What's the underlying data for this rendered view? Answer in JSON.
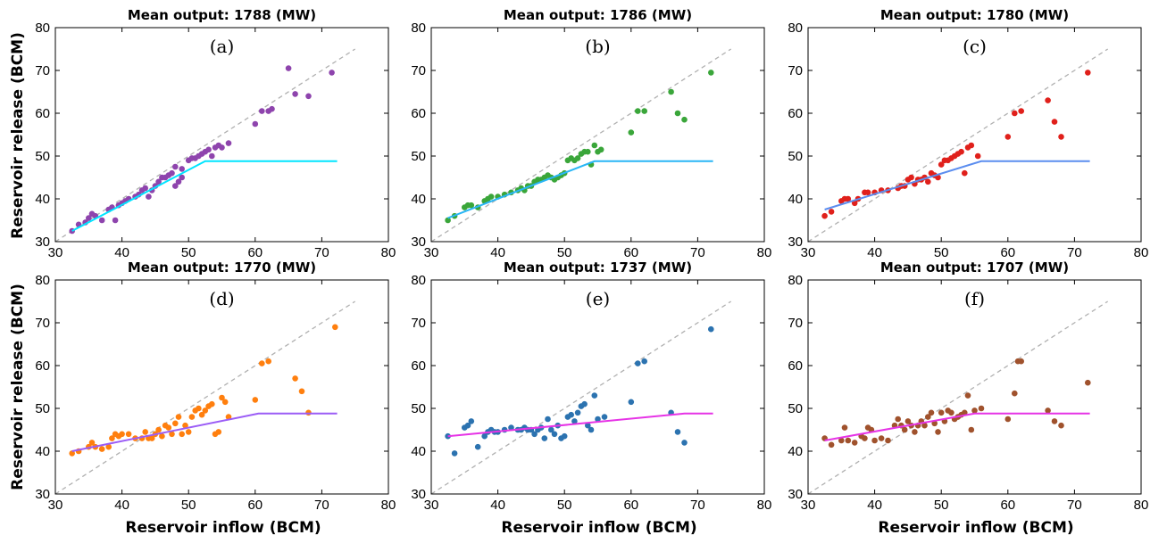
{
  "figure": {
    "ylabel": "Reservoir release (BCM)",
    "xlabel": "Reservoir inflow (BCM)"
  },
  "chart_data": [
    {
      "type": "scatter",
      "title": "Mean output: 1788 (MW)",
      "panel_label": "(a)",
      "xlim": [
        30,
        80
      ],
      "ylim": [
        30,
        80
      ],
      "xticks": [
        "30",
        "40",
        "50",
        "60",
        "70",
        "80"
      ],
      "yticks": [
        "30",
        "40",
        "50",
        "60",
        "70",
        "80"
      ],
      "point_color": "#8e44ad",
      "line_color": "#00e5ff",
      "identity_line": [
        [
          30,
          30
        ],
        [
          75,
          75
        ]
      ],
      "policy_line": [
        [
          32.5,
          32.5
        ],
        [
          52.5,
          48.8
        ],
        [
          72.3,
          48.8
        ]
      ],
      "points": [
        [
          32.5,
          32.5
        ],
        [
          33.5,
          34
        ],
        [
          34.5,
          34.5
        ],
        [
          35,
          35.5
        ],
        [
          35.5,
          36.5
        ],
        [
          36,
          36
        ],
        [
          37,
          35
        ],
        [
          38,
          37.5
        ],
        [
          38.5,
          38
        ],
        [
          39,
          35
        ],
        [
          39.5,
          38.5
        ],
        [
          40,
          39
        ],
        [
          40.5,
          39.5
        ],
        [
          41,
          40
        ],
        [
          42,
          40.5
        ],
        [
          42.5,
          41
        ],
        [
          43,
          42
        ],
        [
          43.5,
          42.5
        ],
        [
          44,
          40.5
        ],
        [
          44.5,
          42
        ],
        [
          45,
          43
        ],
        [
          45.5,
          44
        ],
        [
          46,
          45
        ],
        [
          46.5,
          45
        ],
        [
          47,
          45.5
        ],
        [
          47.5,
          46
        ],
        [
          48,
          43
        ],
        [
          48,
          47.5
        ],
        [
          48.5,
          44
        ],
        [
          49,
          45
        ],
        [
          49,
          47
        ],
        [
          50,
          49
        ],
        [
          50.5,
          49.5
        ],
        [
          51,
          49.5
        ],
        [
          51.5,
          50
        ],
        [
          52,
          50.5
        ],
        [
          52.5,
          51
        ],
        [
          53,
          51.5
        ],
        [
          53.5,
          50
        ],
        [
          54,
          52
        ],
        [
          54.5,
          52.5
        ],
        [
          55,
          52
        ],
        [
          56,
          53
        ],
        [
          60,
          57.5
        ],
        [
          61,
          60.5
        ],
        [
          62,
          60.5
        ],
        [
          62.5,
          61
        ],
        [
          65,
          70.5
        ],
        [
          66,
          64.5
        ],
        [
          68,
          64
        ],
        [
          71.5,
          69.5
        ]
      ]
    },
    {
      "type": "scatter",
      "title": "Mean output: 1786 (MW)",
      "panel_label": "(b)",
      "xlim": [
        30,
        80
      ],
      "ylim": [
        30,
        80
      ],
      "xticks": [
        "30",
        "40",
        "50",
        "60",
        "70",
        "80"
      ],
      "yticks": [
        "30",
        "40",
        "50",
        "60",
        "70",
        "80"
      ],
      "point_color": "#3aa63a",
      "line_color": "#29b6f6",
      "identity_line": [
        [
          30,
          30
        ],
        [
          75,
          75
        ]
      ],
      "policy_line": [
        [
          32.5,
          35.5
        ],
        [
          54.5,
          48.8
        ],
        [
          72.3,
          48.8
        ]
      ],
      "points": [
        [
          32.5,
          35
        ],
        [
          33.5,
          36
        ],
        [
          35,
          38
        ],
        [
          35.5,
          38.5
        ],
        [
          36,
          38.5
        ],
        [
          37,
          38
        ],
        [
          38,
          39.5
        ],
        [
          38.5,
          40
        ],
        [
          39,
          40.5
        ],
        [
          40,
          40.5
        ],
        [
          41,
          41
        ],
        [
          42,
          41.5
        ],
        [
          43,
          42
        ],
        [
          43.5,
          42.5
        ],
        [
          44,
          42
        ],
        [
          44.5,
          43
        ],
        [
          45,
          43
        ],
        [
          45.5,
          44
        ],
        [
          46,
          44.5
        ],
        [
          46.5,
          44.5
        ],
        [
          47,
          45
        ],
        [
          47.5,
          45.5
        ],
        [
          48,
          45
        ],
        [
          48.5,
          44.5
        ],
        [
          49,
          45
        ],
        [
          49.5,
          45.5
        ],
        [
          50,
          46
        ],
        [
          50.5,
          49
        ],
        [
          51,
          49.5
        ],
        [
          51.5,
          49
        ],
        [
          52,
          49.5
        ],
        [
          52.5,
          50.5
        ],
        [
          53,
          51
        ],
        [
          53.5,
          51
        ],
        [
          54,
          48
        ],
        [
          54.5,
          52.5
        ],
        [
          55,
          51
        ],
        [
          55.5,
          51.5
        ],
        [
          60,
          55.5
        ],
        [
          61,
          60.5
        ],
        [
          62,
          60.5
        ],
        [
          66,
          65
        ],
        [
          67,
          60
        ],
        [
          68,
          58.5
        ],
        [
          72,
          69.5
        ]
      ]
    },
    {
      "type": "scatter",
      "title": "Mean output: 1780 (MW)",
      "panel_label": "(c)",
      "xlim": [
        30,
        80
      ],
      "ylim": [
        30,
        80
      ],
      "xticks": [
        "30",
        "40",
        "50",
        "60",
        "70",
        "80"
      ],
      "yticks": [
        "30",
        "40",
        "50",
        "60",
        "70",
        "80"
      ],
      "point_color": "#e0201b",
      "line_color": "#5b8def",
      "identity_line": [
        [
          30,
          30
        ],
        [
          75,
          75
        ]
      ],
      "policy_line": [
        [
          32.5,
          37.5
        ],
        [
          56,
          48.8
        ],
        [
          72.3,
          48.8
        ]
      ],
      "points": [
        [
          32.5,
          36
        ],
        [
          33.5,
          37
        ],
        [
          35,
          39.5
        ],
        [
          35.5,
          40
        ],
        [
          36,
          40
        ],
        [
          37,
          39
        ],
        [
          37.5,
          40
        ],
        [
          38.5,
          41.5
        ],
        [
          39,
          41.5
        ],
        [
          40,
          41.5
        ],
        [
          41,
          42
        ],
        [
          42,
          42
        ],
        [
          43.5,
          42.5
        ],
        [
          44,
          43
        ],
        [
          44.5,
          43
        ],
        [
          45,
          44.5
        ],
        [
          45.5,
          45
        ],
        [
          46,
          43.5
        ],
        [
          46.5,
          44.5
        ],
        [
          47,
          44.5
        ],
        [
          47.5,
          45
        ],
        [
          48,
          44
        ],
        [
          48.5,
          46
        ],
        [
          49,
          45.5
        ],
        [
          49.5,
          45
        ],
        [
          50,
          48
        ],
        [
          50.5,
          49
        ],
        [
          51,
          49
        ],
        [
          51.5,
          49.5
        ],
        [
          52,
          50
        ],
        [
          52.5,
          50.5
        ],
        [
          53,
          51
        ],
        [
          53.5,
          46
        ],
        [
          54,
          52
        ],
        [
          54.5,
          52.5
        ],
        [
          55.5,
          50
        ],
        [
          60,
          54.5
        ],
        [
          61,
          60
        ],
        [
          62,
          60.5
        ],
        [
          66,
          63
        ],
        [
          67,
          58
        ],
        [
          68,
          54.5
        ],
        [
          72,
          69.5
        ]
      ]
    },
    {
      "type": "scatter",
      "title": "Mean output: 1770 (MW)",
      "panel_label": "(d)",
      "xlim": [
        30,
        80
      ],
      "ylim": [
        30,
        80
      ],
      "xticks": [
        "30",
        "40",
        "50",
        "60",
        "70",
        "80"
      ],
      "yticks": [
        "30",
        "40",
        "50",
        "60",
        "70",
        "80"
      ],
      "point_color": "#ff7f0e",
      "line_color": "#9b5cf6",
      "identity_line": [
        [
          30,
          30
        ],
        [
          75,
          75
        ]
      ],
      "policy_line": [
        [
          32.5,
          40
        ],
        [
          60.5,
          48.8
        ],
        [
          72.3,
          48.8
        ]
      ],
      "points": [
        [
          32.5,
          39.5
        ],
        [
          33.5,
          40
        ],
        [
          35,
          41
        ],
        [
          35.5,
          42
        ],
        [
          36,
          41
        ],
        [
          37,
          40.5
        ],
        [
          38,
          41
        ],
        [
          38.5,
          43
        ],
        [
          39,
          44
        ],
        [
          39.5,
          43.5
        ],
        [
          40,
          44
        ],
        [
          41,
          44
        ],
        [
          42,
          43
        ],
        [
          43,
          43
        ],
        [
          43.5,
          44.5
        ],
        [
          44,
          43
        ],
        [
          44.5,
          43
        ],
        [
          45,
          44
        ],
        [
          45.5,
          45
        ],
        [
          46,
          43.5
        ],
        [
          46.5,
          46
        ],
        [
          47,
          45.5
        ],
        [
          47.5,
          44
        ],
        [
          48,
          46.5
        ],
        [
          48.5,
          48
        ],
        [
          49,
          44
        ],
        [
          49.5,
          46
        ],
        [
          50,
          44.5
        ],
        [
          50.5,
          48
        ],
        [
          51,
          49.5
        ],
        [
          51.5,
          50
        ],
        [
          52,
          48.5
        ],
        [
          52.5,
          49.5
        ],
        [
          53,
          50.5
        ],
        [
          53.5,
          51
        ],
        [
          54,
          44
        ],
        [
          54.5,
          44.5
        ],
        [
          55,
          52.5
        ],
        [
          55.5,
          51.5
        ],
        [
          56,
          48
        ],
        [
          60,
          52
        ],
        [
          61,
          60.5
        ],
        [
          62,
          61
        ],
        [
          66,
          57
        ],
        [
          67,
          54
        ],
        [
          68,
          49
        ],
        [
          72,
          69
        ]
      ]
    },
    {
      "type": "scatter",
      "title": "Mean output: 1737 (MW)",
      "panel_label": "(e)",
      "xlim": [
        30,
        80
      ],
      "ylim": [
        30,
        80
      ],
      "xticks": [
        "30",
        "40",
        "50",
        "60",
        "70",
        "80"
      ],
      "yticks": [
        "30",
        "40",
        "50",
        "60",
        "70",
        "80"
      ],
      "point_color": "#2c73b0",
      "line_color": "#e633e6",
      "identity_line": [
        [
          30,
          30
        ],
        [
          75,
          75
        ]
      ],
      "policy_line": [
        [
          32.5,
          43.5
        ],
        [
          68,
          48.8
        ],
        [
          72.3,
          48.8
        ]
      ],
      "points": [
        [
          32.5,
          43.5
        ],
        [
          33.5,
          39.5
        ],
        [
          35,
          45.5
        ],
        [
          35.5,
          46
        ],
        [
          36,
          47
        ],
        [
          37,
          41
        ],
        [
          38,
          43.5
        ],
        [
          38.5,
          44.5
        ],
        [
          39,
          45
        ],
        [
          39.5,
          44.5
        ],
        [
          40,
          44.5
        ],
        [
          41,
          45
        ],
        [
          42,
          45.5
        ],
        [
          43,
          45
        ],
        [
          43.5,
          45
        ],
        [
          44,
          45.5
        ],
        [
          44.5,
          45
        ],
        [
          45,
          45
        ],
        [
          45.5,
          44
        ],
        [
          46,
          45
        ],
        [
          46.5,
          45.5
        ],
        [
          47,
          43
        ],
        [
          47.5,
          47.5
        ],
        [
          48,
          45
        ],
        [
          48.5,
          44
        ],
        [
          49,
          46
        ],
        [
          49.5,
          43
        ],
        [
          50,
          43.5
        ],
        [
          50.5,
          48
        ],
        [
          51,
          48.5
        ],
        [
          51.5,
          47
        ],
        [
          52,
          49
        ],
        [
          52.5,
          50.5
        ],
        [
          53,
          51
        ],
        [
          53.5,
          46
        ],
        [
          54,
          45
        ],
        [
          54.5,
          53
        ],
        [
          55,
          47.5
        ],
        [
          56,
          48
        ],
        [
          60,
          51.5
        ],
        [
          61,
          60.5
        ],
        [
          62,
          61
        ],
        [
          66,
          49
        ],
        [
          67,
          44.5
        ],
        [
          68,
          42
        ],
        [
          72,
          68.5
        ]
      ]
    },
    {
      "type": "scatter",
      "title": "Mean output: 1707 (MW)",
      "panel_label": "(f)",
      "xlim": [
        30,
        80
      ],
      "ylim": [
        30,
        80
      ],
      "xticks": [
        "30",
        "40",
        "50",
        "60",
        "70",
        "80"
      ],
      "yticks": [
        "30",
        "40",
        "50",
        "60",
        "70",
        "80"
      ],
      "point_color": "#a0522d",
      "line_color": "#e633e6",
      "identity_line": [
        [
          30,
          30
        ],
        [
          75,
          75
        ]
      ],
      "policy_line": [
        [
          32.5,
          42.5
        ],
        [
          55,
          48.8
        ],
        [
          72.3,
          48.8
        ]
      ],
      "points": [
        [
          32.5,
          43
        ],
        [
          33.5,
          41.5
        ],
        [
          35,
          42.5
        ],
        [
          35.5,
          45.5
        ],
        [
          36,
          42.5
        ],
        [
          37,
          42
        ],
        [
          38,
          43.5
        ],
        [
          38.5,
          43
        ],
        [
          39,
          45.5
        ],
        [
          39.5,
          45
        ],
        [
          40,
          42.5
        ],
        [
          41,
          43
        ],
        [
          42,
          42.5
        ],
        [
          43,
          46
        ],
        [
          43.5,
          47.5
        ],
        [
          44,
          46
        ],
        [
          44.5,
          45
        ],
        [
          45,
          47
        ],
        [
          45.5,
          46
        ],
        [
          46,
          44.5
        ],
        [
          46.5,
          46
        ],
        [
          47,
          47
        ],
        [
          47.5,
          46
        ],
        [
          48,
          48
        ],
        [
          48.5,
          49
        ],
        [
          49,
          46.5
        ],
        [
          49.5,
          44.5
        ],
        [
          50,
          49
        ],
        [
          50.5,
          47
        ],
        [
          51,
          49.5
        ],
        [
          51.5,
          49
        ],
        [
          52,
          47.5
        ],
        [
          52.5,
          48
        ],
        [
          53,
          48.5
        ],
        [
          53.5,
          49
        ],
        [
          54,
          53
        ],
        [
          54.5,
          45
        ],
        [
          55,
          49.5
        ],
        [
          56,
          50
        ],
        [
          60,
          47.5
        ],
        [
          61,
          53.5
        ],
        [
          61.5,
          61
        ],
        [
          62,
          61
        ],
        [
          66,
          49.5
        ],
        [
          67,
          47
        ],
        [
          68,
          46
        ],
        [
          72,
          56
        ]
      ]
    }
  ]
}
